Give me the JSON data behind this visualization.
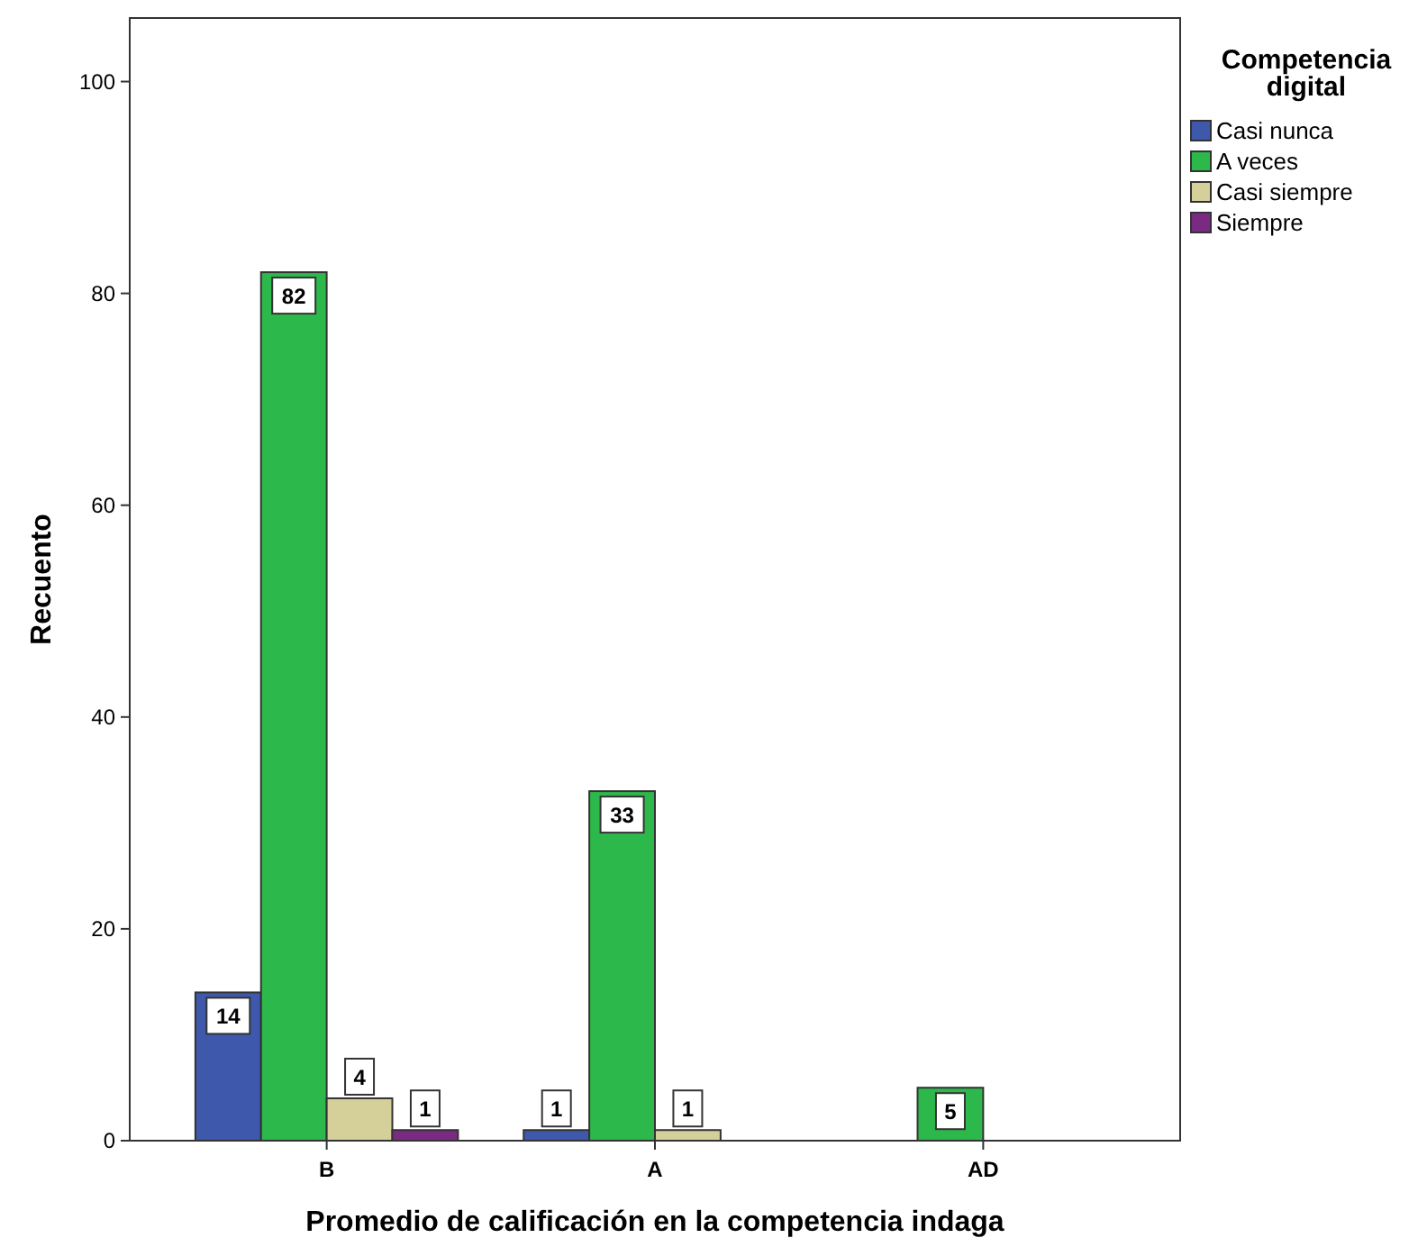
{
  "chart_data": {
    "type": "bar",
    "xlabel": "Promedio de calificación en la competencia indaga",
    "ylabel": "Recuento",
    "legend_title": "Competencia digital",
    "categories": [
      "B",
      "A",
      "AD"
    ],
    "series": [
      {
        "name": "Casi nunca",
        "color": "#3e58ac",
        "values": [
          14,
          1,
          null
        ]
      },
      {
        "name": "A veces",
        "color": "#2db84b",
        "values": [
          82,
          33,
          5
        ]
      },
      {
        "name": "Casi siempre",
        "color": "#d5cf9a",
        "values": [
          4,
          1,
          null
        ]
      },
      {
        "name": "Siempre",
        "color": "#7b2a83",
        "values": [
          1,
          null,
          null
        ]
      }
    ],
    "ylim": [
      0,
      106
    ],
    "yticks": [
      0,
      20,
      40,
      60,
      80,
      100
    ],
    "data_labels": true,
    "legend": "right",
    "grid": false
  }
}
